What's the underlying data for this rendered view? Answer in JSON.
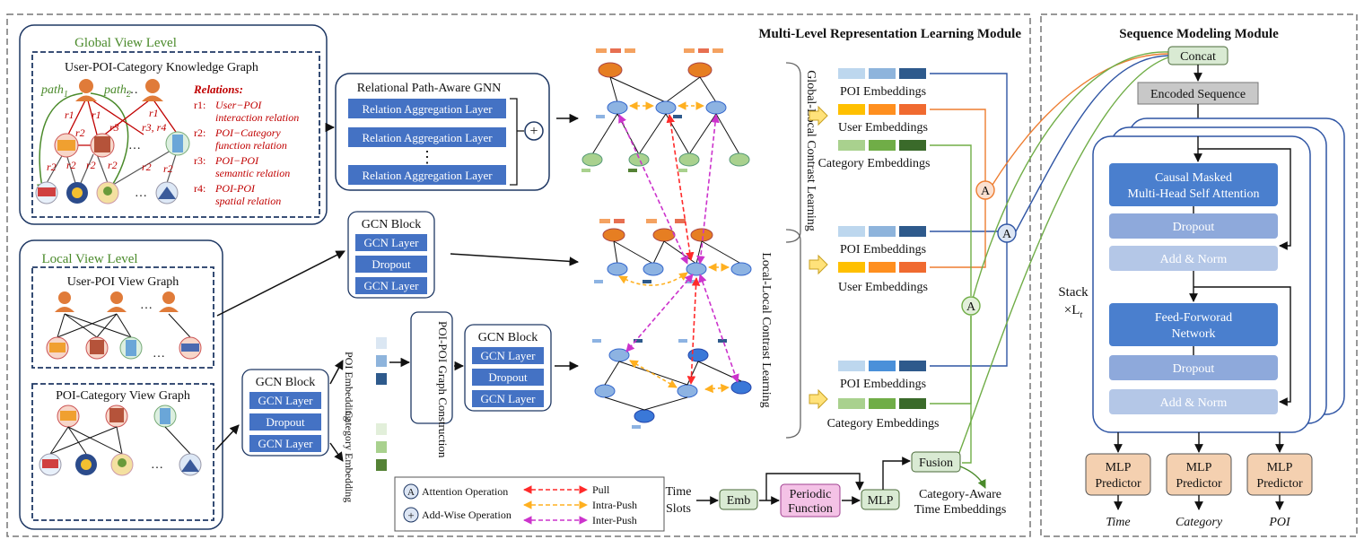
{
  "modules": {
    "mlr_title": "Multi-Level Representation Learning Module",
    "seq_title": "Sequence Modeling Module"
  },
  "global_view": {
    "title": "Global View Level",
    "kg_title": "User-POI-Category Knowledge Graph",
    "path1": "path",
    "path1_sub": "1",
    "path2": "path",
    "path2_sub": "2",
    "edge_labels": [
      "r1",
      "r1",
      "r3",
      "r1",
      "r3, r4",
      "r2",
      "r2",
      "r2",
      "r2",
      "r2",
      "r2",
      "r2"
    ],
    "dots": "…",
    "relations_title": "Relations:",
    "relations": [
      {
        "id": "r1:",
        "line1": "User−POI",
        "line2": "interaction relation"
      },
      {
        "id": "r2:",
        "line1": "POI−Category",
        "line2": "function relation"
      },
      {
        "id": "r3:",
        "line1": "POI−POI",
        "line2": "semantic relation"
      },
      {
        "id": "r4:",
        "line1": "POI-POI",
        "line2": "spatial relation"
      }
    ]
  },
  "gnn": {
    "title": "Relational Path-Aware GNN",
    "layer": "Relation Aggregation Layer",
    "vdots": "⋮",
    "plus": "+"
  },
  "local_view": {
    "title": "Local View  Level",
    "user_poi": "User-POI View Graph",
    "poi_cat": "POI-Category View Graph",
    "dots": "…"
  },
  "gcn_block": {
    "title": "GCN Block",
    "layer": "GCN Layer",
    "dropout": "Dropout"
  },
  "side_labels": {
    "poi_embedding": "POI Embedding",
    "category_embedding": "Category Embedding",
    "poi_poi_graph": "POI-POI Graph Construction"
  },
  "contrast": {
    "global_local": "Global-Local Contrast Learning",
    "local_local": "Local-Local Contrast Learning"
  },
  "embeddings": {
    "poi": "POI Embeddings",
    "user": "User Embeddings",
    "category": "Category Embeddings"
  },
  "ops": {
    "attn": "A",
    "fusion": "Fusion",
    "concat": "Concat",
    "encoded": "Encoded Sequence"
  },
  "time": {
    "slots1": "Time",
    "slots2": "Slots",
    "emb": "Emb",
    "periodic1": "Periodic",
    "periodic2": "Function",
    "mlp": "MLP",
    "cat_aware1": "Category-Aware",
    "cat_aware2": "Time Embeddings"
  },
  "legend": {
    "attention": "Attention  Operation",
    "addwise": "Add-Wise Operation",
    "pull": "Pull",
    "intra": "Intra-Push",
    "inter": "Inter-Push",
    "a": "A",
    "plus": "+"
  },
  "transformer": {
    "attn1": "Causal Masked",
    "attn2": "Multi-Head Self Attention",
    "dropout": "Dropout",
    "addnorm": "Add & Norm",
    "ffn1": "Feed-Forworad",
    "ffn2": "Network",
    "stack": "Stack",
    "stack_times": "×L",
    "stack_sub": "t"
  },
  "predictors": {
    "mlp": "MLP",
    "predictor": "Predictor",
    "time": "Time",
    "category": "Category",
    "poi": "POI"
  },
  "colors": {
    "blue_box": "#4472c4",
    "pull": "#ff2a2a",
    "intra": "#ffb020",
    "inter": "#cc33cc",
    "orange_line": "#ed7d31",
    "green_line": "#70ad47",
    "blue_line": "#2f55a4",
    "frame": "#1f3864"
  }
}
